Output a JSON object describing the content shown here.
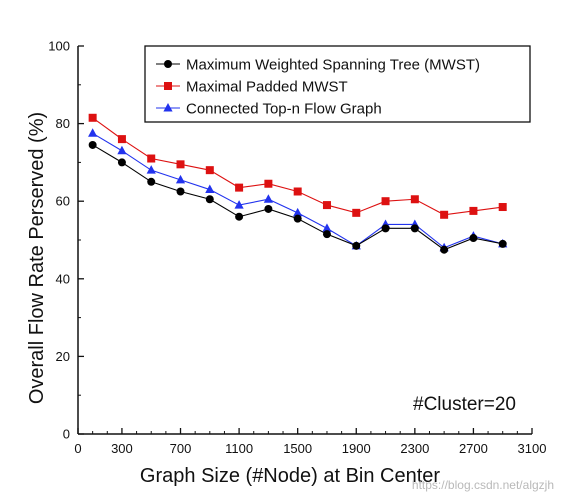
{
  "chart_data": {
    "type": "line",
    "title": "",
    "xlabel": "Graph Size (#Node) at Bin Center",
    "ylabel": "Overall Flow Rate Perserved (%)",
    "xlim": [
      0,
      3100
    ],
    "ylim": [
      0,
      100
    ],
    "xticks": [
      "0",
      "300",
      "700",
      "1100",
      "1500",
      "1900",
      "2300",
      "2700",
      "3100"
    ],
    "xtick_values": [
      0,
      300,
      700,
      1100,
      1500,
      1900,
      2300,
      2700,
      3100
    ],
    "yticks": [
      "0",
      "20",
      "40",
      "60",
      "80",
      "100"
    ],
    "ytick_values": [
      0,
      20,
      40,
      60,
      80,
      100
    ],
    "x": [
      100,
      300,
      500,
      700,
      900,
      1100,
      1300,
      1500,
      1700,
      1900,
      2100,
      2300,
      2500,
      2700,
      2900
    ],
    "series": [
      {
        "name": "Maximum Weighted Spanning Tree (MWST)",
        "color": "#000000",
        "marker": "circle",
        "values": [
          74.5,
          70.0,
          65.0,
          62.5,
          60.5,
          56.0,
          58.0,
          55.5,
          51.5,
          48.5,
          53.0,
          53.0,
          47.5,
          50.5,
          49.0
        ]
      },
      {
        "name": "Maximal Padded MWST",
        "color": "#dd1111",
        "marker": "square",
        "values": [
          81.5,
          76.0,
          71.0,
          69.5,
          68.0,
          63.5,
          64.5,
          62.5,
          59.0,
          57.0,
          60.0,
          60.5,
          56.5,
          57.5,
          58.5
        ]
      },
      {
        "name": "Connected Top-n Flow Graph",
        "color": "#2233ee",
        "marker": "triangle",
        "values": [
          77.5,
          73.0,
          68.0,
          65.5,
          63.0,
          59.0,
          60.5,
          57.0,
          53.0,
          48.5,
          54.0,
          54.0,
          48.0,
          51.0,
          49.0
        ]
      }
    ],
    "legend_position": "top-right",
    "annotation": "#Cluster=20",
    "grid": false
  },
  "watermark": "https://blog.csdn.net/algzjh"
}
